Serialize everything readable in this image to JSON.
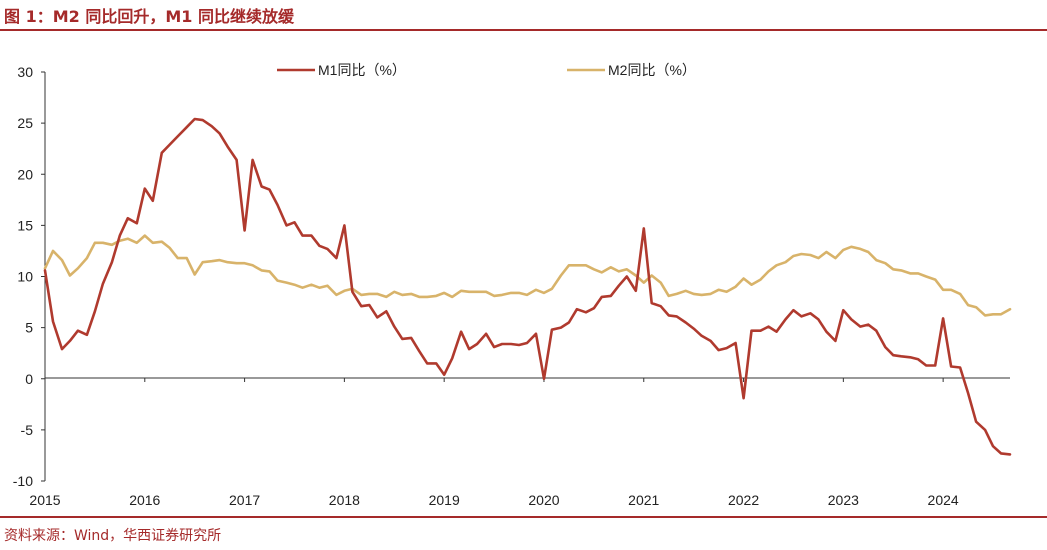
{
  "figure_title": "图 1：M2 同比回升，M1 同比继续放缓",
  "source_text": "资料来源：Wind，华西证券研究所",
  "colors": {
    "accent": "#a52a2a",
    "m1": "#b03a2e",
    "m2": "#d8b36a",
    "axis": "#333333"
  },
  "chart_data": {
    "type": "line",
    "title": "",
    "xlabel": "",
    "ylabel": "",
    "xlim": [
      2015,
      2024.67
    ],
    "ylim": [
      -10,
      30
    ],
    "yticks": [
      -10,
      -5,
      0,
      5,
      10,
      15,
      20,
      25,
      30
    ],
    "xticks": [
      2015,
      2016,
      2017,
      2018,
      2019,
      2020,
      2021,
      2022,
      2023,
      2024
    ],
    "legend": "top",
    "series": [
      {
        "name": "M1同比（%）",
        "color": "#b03a2e",
        "x": [
          2015.0,
          2015.08,
          2015.17,
          2015.25,
          2015.33,
          2015.42,
          2015.5,
          2015.58,
          2015.67,
          2015.75,
          2015.83,
          2015.92,
          2016.0,
          2016.08,
          2016.17,
          2016.25,
          2016.33,
          2016.42,
          2016.5,
          2016.58,
          2016.67,
          2016.75,
          2016.83,
          2016.92,
          2017.0,
          2017.08,
          2017.17,
          2017.25,
          2017.33,
          2017.42,
          2017.5,
          2017.58,
          2017.67,
          2017.75,
          2017.83,
          2017.92,
          2018.0,
          2018.08,
          2018.17,
          2018.25,
          2018.33,
          2018.42,
          2018.5,
          2018.58,
          2018.67,
          2018.75,
          2018.83,
          2018.92,
          2019.0,
          2019.08,
          2019.17,
          2019.25,
          2019.33,
          2019.42,
          2019.5,
          2019.58,
          2019.67,
          2019.75,
          2019.83,
          2019.92,
          2020.0,
          2020.08,
          2020.17,
          2020.25,
          2020.33,
          2020.42,
          2020.5,
          2020.58,
          2020.67,
          2020.75,
          2020.83,
          2020.92,
          2021.0,
          2021.08,
          2021.17,
          2021.25,
          2021.33,
          2021.42,
          2021.5,
          2021.58,
          2021.67,
          2021.75,
          2021.83,
          2021.92,
          2022.0,
          2022.08,
          2022.17,
          2022.25,
          2022.33,
          2022.42,
          2022.5,
          2022.58,
          2022.67,
          2022.75,
          2022.83,
          2022.92,
          2023.0,
          2023.08,
          2023.17,
          2023.25,
          2023.33,
          2023.42,
          2023.5,
          2023.58,
          2023.67,
          2023.75,
          2023.83,
          2023.92,
          2024.0,
          2024.08,
          2024.17,
          2024.25,
          2024.33,
          2024.42,
          2024.5,
          2024.58,
          2024.67
        ],
        "values": [
          10.6,
          5.6,
          2.9,
          3.7,
          4.7,
          4.3,
          6.6,
          9.3,
          11.4,
          14.0,
          15.7,
          15.2,
          18.6,
          17.4,
          22.1,
          22.9,
          23.7,
          24.6,
          25.4,
          25.3,
          24.7,
          24.0,
          22.7,
          21.4,
          14.5,
          21.4,
          18.8,
          18.5,
          17.0,
          15.0,
          15.3,
          14.0,
          14.0,
          13.0,
          12.7,
          11.8,
          15.0,
          8.5,
          7.1,
          7.2,
          6.0,
          6.6,
          5.1,
          3.9,
          4.0,
          2.7,
          1.5,
          1.5,
          0.4,
          2.0,
          4.6,
          2.9,
          3.4,
          4.4,
          3.1,
          3.4,
          3.4,
          3.3,
          3.5,
          4.4,
          0.0,
          4.8,
          5.0,
          5.5,
          6.8,
          6.5,
          6.9,
          8.0,
          8.1,
          9.1,
          10.0,
          8.6,
          14.7,
          7.4,
          7.1,
          6.2,
          6.1,
          5.5,
          4.9,
          4.2,
          3.7,
          2.8,
          3.0,
          3.5,
          -1.9,
          4.7,
          4.7,
          5.1,
          4.6,
          5.8,
          6.7,
          6.1,
          6.4,
          5.8,
          4.6,
          3.7,
          6.7,
          5.8,
          5.1,
          5.3,
          4.7,
          3.1,
          2.3,
          2.2,
          2.1,
          1.9,
          1.3,
          1.3,
          5.9,
          1.2,
          1.1,
          -1.4,
          -4.2,
          -5.0,
          -6.6,
          -7.3,
          -7.4
        ]
      },
      {
        "name": "M2同比（%）",
        "color": "#d8b36a",
        "x": [
          2015.0,
          2015.08,
          2015.17,
          2015.25,
          2015.33,
          2015.42,
          2015.5,
          2015.58,
          2015.67,
          2015.75,
          2015.83,
          2015.92,
          2016.0,
          2016.08,
          2016.17,
          2016.25,
          2016.33,
          2016.42,
          2016.5,
          2016.58,
          2016.67,
          2016.75,
          2016.83,
          2016.92,
          2017.0,
          2017.08,
          2017.17,
          2017.25,
          2017.33,
          2017.42,
          2017.5,
          2017.58,
          2017.67,
          2017.75,
          2017.83,
          2017.92,
          2018.0,
          2018.08,
          2018.17,
          2018.25,
          2018.33,
          2018.42,
          2018.5,
          2018.58,
          2018.67,
          2018.75,
          2018.83,
          2018.92,
          2019.0,
          2019.08,
          2019.17,
          2019.25,
          2019.33,
          2019.42,
          2019.5,
          2019.58,
          2019.67,
          2019.75,
          2019.83,
          2019.92,
          2020.0,
          2020.08,
          2020.17,
          2020.25,
          2020.33,
          2020.42,
          2020.5,
          2020.58,
          2020.67,
          2020.75,
          2020.83,
          2020.92,
          2021.0,
          2021.08,
          2021.17,
          2021.25,
          2021.33,
          2021.42,
          2021.5,
          2021.58,
          2021.67,
          2021.75,
          2021.83,
          2021.92,
          2022.0,
          2022.08,
          2022.17,
          2022.25,
          2022.33,
          2022.42,
          2022.5,
          2022.58,
          2022.67,
          2022.75,
          2022.83,
          2022.92,
          2023.0,
          2023.08,
          2023.17,
          2023.25,
          2023.33,
          2023.42,
          2023.5,
          2023.58,
          2023.67,
          2023.75,
          2023.83,
          2023.92,
          2024.0,
          2024.08,
          2024.17,
          2024.25,
          2024.33,
          2024.42,
          2024.5,
          2024.58,
          2024.67
        ],
        "values": [
          10.8,
          12.5,
          11.6,
          10.1,
          10.8,
          11.8,
          13.3,
          13.3,
          13.1,
          13.5,
          13.7,
          13.3,
          14.0,
          13.3,
          13.4,
          12.8,
          11.8,
          11.8,
          10.2,
          11.4,
          11.5,
          11.6,
          11.4,
          11.3,
          11.3,
          11.1,
          10.6,
          10.5,
          9.6,
          9.4,
          9.2,
          8.9,
          9.2,
          8.9,
          9.1,
          8.2,
          8.6,
          8.8,
          8.2,
          8.3,
          8.3,
          8.0,
          8.5,
          8.2,
          8.3,
          8.0,
          8.0,
          8.1,
          8.4,
          8.0,
          8.6,
          8.5,
          8.5,
          8.5,
          8.1,
          8.2,
          8.4,
          8.4,
          8.2,
          8.7,
          8.4,
          8.8,
          10.1,
          11.1,
          11.1,
          11.1,
          10.7,
          10.4,
          10.9,
          10.5,
          10.7,
          10.1,
          9.4,
          10.1,
          9.4,
          8.1,
          8.3,
          8.6,
          8.3,
          8.2,
          8.3,
          8.7,
          8.5,
          9.0,
          9.8,
          9.2,
          9.7,
          10.5,
          11.1,
          11.4,
          12.0,
          12.2,
          12.1,
          11.8,
          12.4,
          11.8,
          12.6,
          12.9,
          12.7,
          12.4,
          11.6,
          11.3,
          10.7,
          10.6,
          10.3,
          10.3,
          10.0,
          9.7,
          8.7,
          8.7,
          8.3,
          7.2,
          7.0,
          6.2,
          6.3,
          6.3,
          6.8
        ]
      }
    ]
  }
}
